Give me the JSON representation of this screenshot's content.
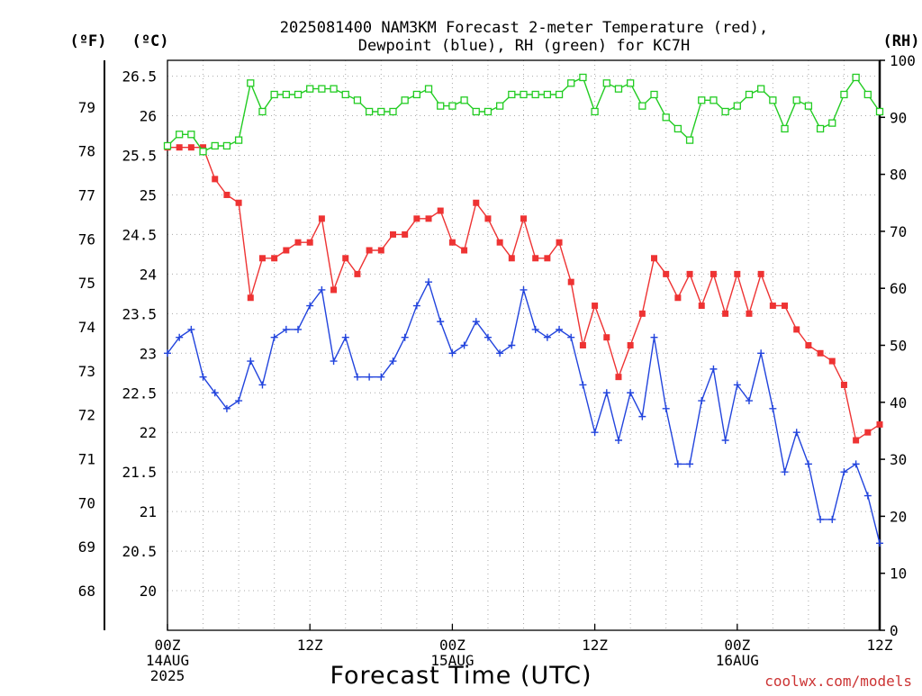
{
  "chart_data": {
    "type": "line",
    "title": "2025081400 NAM3KM Forecast 2-meter Temperature (red),",
    "subtitle": "Dewpoint (blue), RH (green) for KC7H",
    "xlabel": "Forecast Time (UTC)",
    "credit": "coolwx.com/models",
    "unit_f": "(ºF)",
    "unit_c": "(ºC)",
    "unit_rh": "(RH)",
    "x_range_hours": [
      0,
      60
    ],
    "x_ticks": [
      {
        "h": 0,
        "lines": [
          "00Z",
          "14AUG",
          "2025"
        ]
      },
      {
        "h": 12,
        "lines": [
          "12Z"
        ]
      },
      {
        "h": 24,
        "lines": [
          "00Z",
          "15AUG"
        ]
      },
      {
        "h": 36,
        "lines": [
          "12Z"
        ]
      },
      {
        "h": 48,
        "lines": [
          "00Z",
          "16AUG"
        ]
      },
      {
        "h": 60,
        "lines": [
          "12Z"
        ]
      }
    ],
    "ylim_c": [
      19.5,
      26.7
    ],
    "y_ticks_c": [
      "20",
      "20.5",
      "21",
      "21.5",
      "22",
      "22.5",
      "23",
      "23.5",
      "24",
      "24.5",
      "25",
      "25.5",
      "26",
      "26.5"
    ],
    "y_ticks_f": [
      "68",
      "69",
      "70",
      "71",
      "72",
      "73",
      "74",
      "75",
      "76",
      "77",
      "78",
      "79"
    ],
    "ylim_rh": [
      0,
      100
    ],
    "y_ticks_rh": [
      "0",
      "10",
      "20",
      "30",
      "40",
      "50",
      "60",
      "70",
      "80",
      "90",
      "100"
    ],
    "grid": true,
    "series": [
      {
        "name": "Temperature",
        "color": "#ee3333",
        "marker": "filled-square",
        "axis": "celsius",
        "values": [
          25.6,
          25.6,
          25.6,
          25.6,
          25.2,
          25.0,
          24.9,
          23.7,
          24.2,
          24.2,
          24.3,
          24.4,
          24.4,
          24.7,
          23.8,
          24.2,
          24.0,
          24.3,
          24.3,
          24.5,
          24.5,
          24.7,
          24.7,
          24.8,
          24.4,
          24.3,
          24.9,
          24.7,
          24.4,
          24.2,
          24.7,
          24.2,
          24.2,
          24.4,
          23.9,
          23.1,
          23.6,
          23.2,
          22.7,
          23.1,
          23.5,
          24.2,
          24.0,
          23.7,
          24.0,
          23.6,
          24.0,
          23.5,
          24.0,
          23.5,
          24.0,
          23.6,
          23.6,
          23.3,
          23.1,
          23.0,
          22.9,
          22.6,
          21.9,
          22.0,
          22.1
        ]
      },
      {
        "name": "Dewpoint",
        "color": "#2244dd",
        "marker": "plus",
        "axis": "celsius",
        "values": [
          23.0,
          23.2,
          23.3,
          22.7,
          22.5,
          22.3,
          22.4,
          22.9,
          22.6,
          23.2,
          23.3,
          23.3,
          23.6,
          23.8,
          22.9,
          23.2,
          22.7,
          22.7,
          22.7,
          22.9,
          23.2,
          23.6,
          23.9,
          23.4,
          23.0,
          23.1,
          23.4,
          23.2,
          23.0,
          23.1,
          23.8,
          23.3,
          23.2,
          23.3,
          23.2,
          22.6,
          22.0,
          22.5,
          21.9,
          22.5,
          22.2,
          23.2,
          22.3,
          21.6,
          21.6,
          22.4,
          22.8,
          21.9,
          22.6,
          22.4,
          23.0,
          22.3,
          21.5,
          22.0,
          21.6,
          20.9,
          20.9,
          21.5,
          21.6,
          21.2,
          20.6
        ]
      },
      {
        "name": "RH",
        "color": "#22cc22",
        "marker": "hollow-square",
        "axis": "rh",
        "values": [
          85,
          87,
          87,
          84,
          85,
          85,
          86,
          96,
          91,
          94,
          94,
          94,
          95,
          95,
          95,
          94,
          93,
          91,
          91,
          91,
          93,
          94,
          95,
          92,
          92,
          93,
          91,
          91,
          92,
          94,
          94,
          94,
          94,
          94,
          96,
          97,
          91,
          96,
          95,
          96,
          92,
          94,
          90,
          88,
          86,
          93,
          93,
          91,
          92,
          94,
          95,
          93,
          88,
          93,
          92,
          88,
          89,
          94,
          97,
          94,
          91
        ]
      }
    ]
  }
}
